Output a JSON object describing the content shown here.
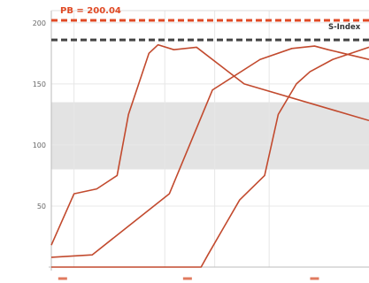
{
  "chart_data": {
    "type": "line",
    "title": "S-Index",
    "ylim": [
      0,
      210
    ],
    "yticks": [
      50,
      100,
      150,
      200
    ],
    "ytick_labels": [
      "50",
      "100",
      "150",
      "200"
    ],
    "xlim": [
      0,
      14
    ],
    "grid": true,
    "band": {
      "y_from": 80,
      "y_to": 135,
      "color": "#e3e3e3"
    },
    "reference_lines": [
      {
        "label": "PB = 200.04",
        "y": 202,
        "color": "#e04a25",
        "style": "dashed"
      },
      {
        "label": "",
        "y": 186,
        "color": "#444444",
        "style": "dashed"
      }
    ],
    "series": [
      {
        "color": "#c24a2e",
        "x": [
          0,
          1,
          2,
          2.9,
          3.4,
          4.3,
          4.7,
          5.4,
          6.4,
          8.5,
          14
        ],
        "y": [
          18,
          60,
          64,
          75,
          125,
          175,
          182,
          178,
          180,
          150,
          120
        ]
      },
      {
        "color": "#c24a2e",
        "x": [
          0,
          1.8,
          5.2,
          7.1,
          9.2,
          10.6,
          11.6,
          12.2,
          14
        ],
        "y": [
          8,
          10,
          60,
          145,
          170,
          179,
          181,
          178,
          170
        ]
      },
      {
        "color": "#c24a2e",
        "x": [
          0,
          6.6,
          6.9,
          8.3,
          9.4,
          10,
          10.8,
          11.4,
          12.4,
          14
        ],
        "y": [
          0,
          0,
          10,
          55,
          75,
          125,
          150,
          160,
          170,
          180
        ]
      }
    ]
  }
}
